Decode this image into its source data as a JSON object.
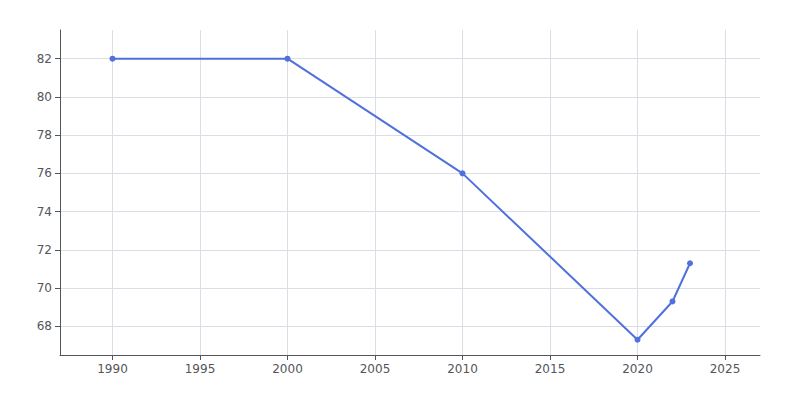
{
  "chart_data": {
    "type": "line",
    "x": [
      1990,
      2000,
      2010,
      2020,
      2022,
      2023
    ],
    "values": [
      82,
      82,
      76,
      67.3,
      69.3,
      71.3
    ],
    "marker": "circle",
    "xlim": [
      1987,
      2027
    ],
    "ylim": [
      66.5,
      83.5
    ],
    "xticks": [
      1990,
      1995,
      2000,
      2005,
      2010,
      2015,
      2020,
      2025
    ],
    "yticks": [
      68,
      70,
      72,
      74,
      76,
      78,
      80,
      82
    ],
    "grid": true
  }
}
